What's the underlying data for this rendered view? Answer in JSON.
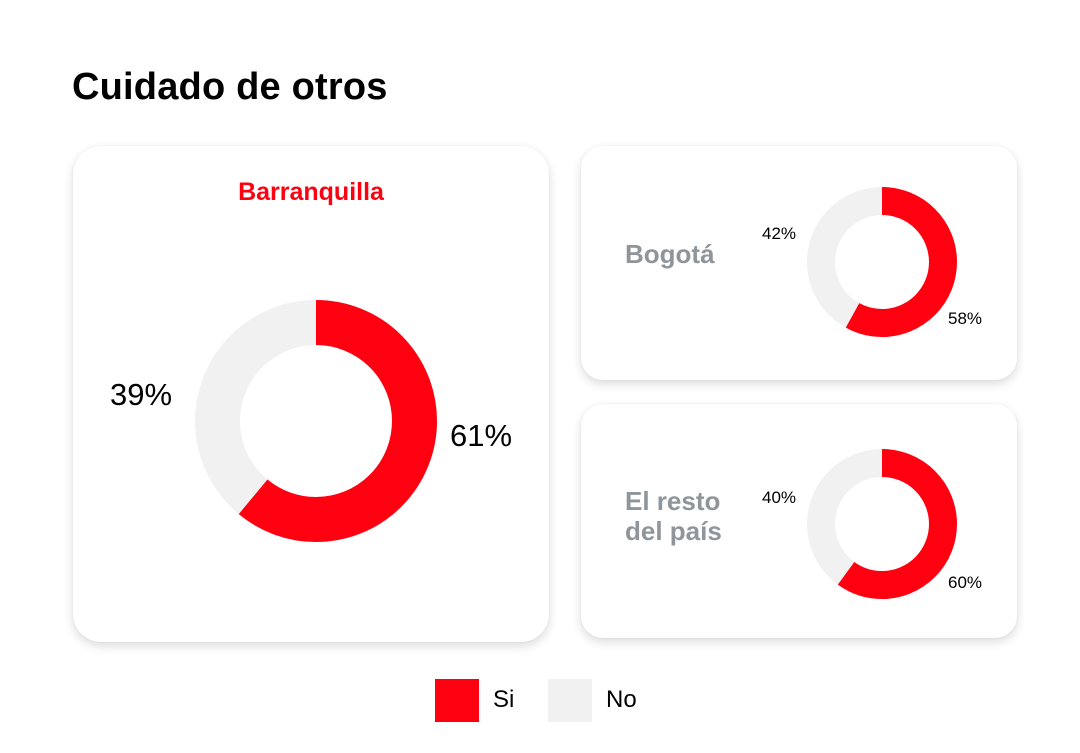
{
  "title": "Cuidado de otros",
  "colors": {
    "si": "#ff0011",
    "no": "#f1f1f1",
    "city_gray": "#8f969b"
  },
  "cards": [
    {
      "city": "Barranquilla",
      "si_label": "61%",
      "no_label": "39%"
    },
    {
      "city": "Bogotá",
      "si_label": "58%",
      "no_label": "42%"
    },
    {
      "city_line1": "El resto",
      "city_line2": "del país",
      "si_label": "60%",
      "no_label": "40%"
    }
  ],
  "legend": [
    {
      "label": "Si",
      "color": "#ff0011"
    },
    {
      "label": "No",
      "color": "#f1f1f1"
    }
  ],
  "chart_data": [
    {
      "type": "pie",
      "title": "Barranquilla",
      "categories": [
        "Si",
        "No"
      ],
      "values": [
        61,
        39
      ],
      "donut": true
    },
    {
      "type": "pie",
      "title": "Bogotá",
      "categories": [
        "Si",
        "No"
      ],
      "values": [
        58,
        42
      ],
      "donut": true
    },
    {
      "type": "pie",
      "title": "El resto del país",
      "categories": [
        "Si",
        "No"
      ],
      "values": [
        60,
        40
      ],
      "donut": true
    }
  ]
}
